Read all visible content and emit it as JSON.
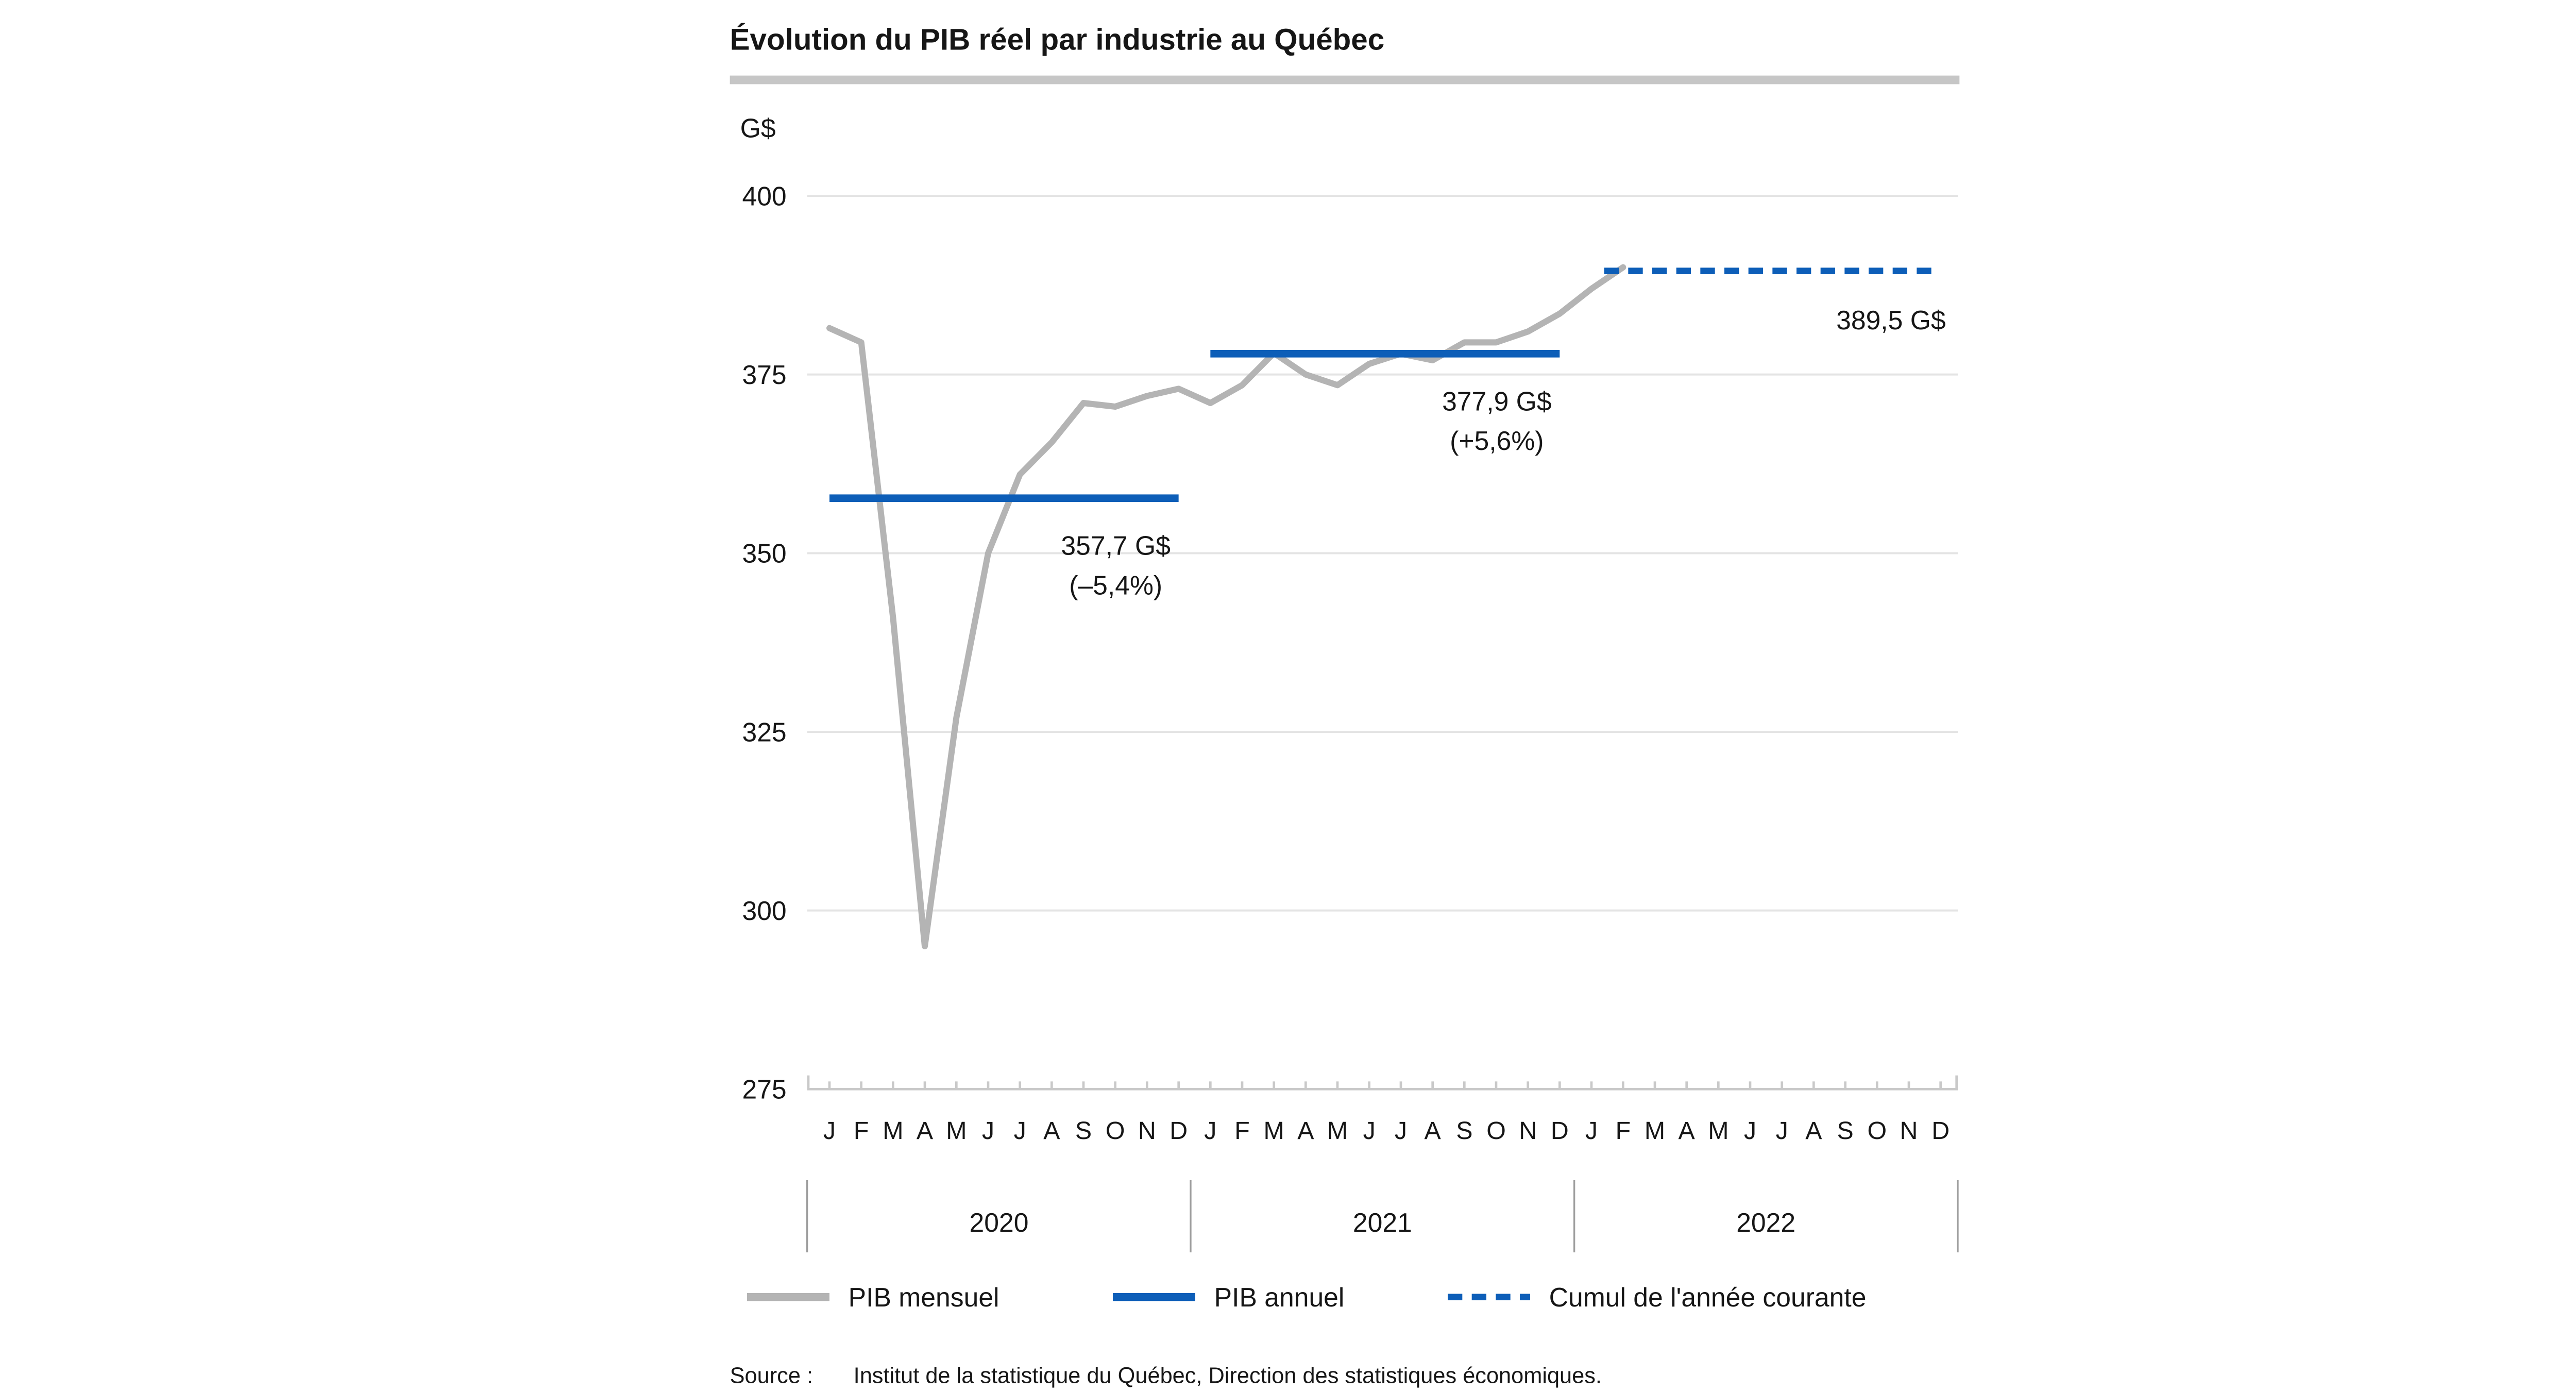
{
  "chart_data": {
    "type": "line",
    "title": "Évolution du PIB réel par industrie au Québec",
    "unit_label": "G$",
    "ylim": [
      275,
      400
    ],
    "yticks": [
      275,
      300,
      325,
      350,
      375,
      400
    ],
    "grid": "horizontal",
    "month_letters": [
      "J",
      "F",
      "M",
      "A",
      "M",
      "J",
      "J",
      "A",
      "S",
      "O",
      "N",
      "D"
    ],
    "years": [
      "2020",
      "2021",
      "2022"
    ],
    "n_months": 36,
    "series": {
      "monthly": {
        "name": "PIB mensuel",
        "color": "#b4b4b4",
        "values": [
          381.5,
          379.5,
          341,
          295,
          327,
          350,
          361,
          365.5,
          371,
          370.5,
          372,
          373,
          371,
          373.5,
          378,
          375,
          373.5,
          376.5,
          377.9,
          377,
          379.5,
          379.5,
          381,
          383.5,
          387,
          390
        ]
      },
      "annual": {
        "name": "PIB annuel",
        "color": "#0d5eb8",
        "segments": [
          {
            "year": "2020",
            "value": 357.7,
            "label": "357,7 G$",
            "change_label": "(–5,4%)",
            "start_month": 0,
            "end_month": 11
          },
          {
            "year": "2021",
            "value": 377.9,
            "label": "377,9 G$",
            "change_label": "(+5,6%)",
            "start_month": 12,
            "end_month": 23
          }
        ]
      },
      "ytd": {
        "name": "Cumul de l'année courante",
        "color": "#0d5eb8",
        "value": 389.5,
        "label": "389,5 G$",
        "start_month": 25,
        "end_month": 35
      }
    }
  },
  "legend": {
    "items": [
      {
        "label": "PIB mensuel",
        "style": "solid",
        "color": "#b4b4b4"
      },
      {
        "label": "PIB annuel",
        "style": "solid",
        "color": "#0d5eb8"
      },
      {
        "label": "Cumul de l'année courante",
        "style": "dashed",
        "color": "#0d5eb8"
      }
    ]
  },
  "source": {
    "prefix": "Source :",
    "text": "Institut de la statistique du Québec, Direction des statistiques économiques."
  }
}
